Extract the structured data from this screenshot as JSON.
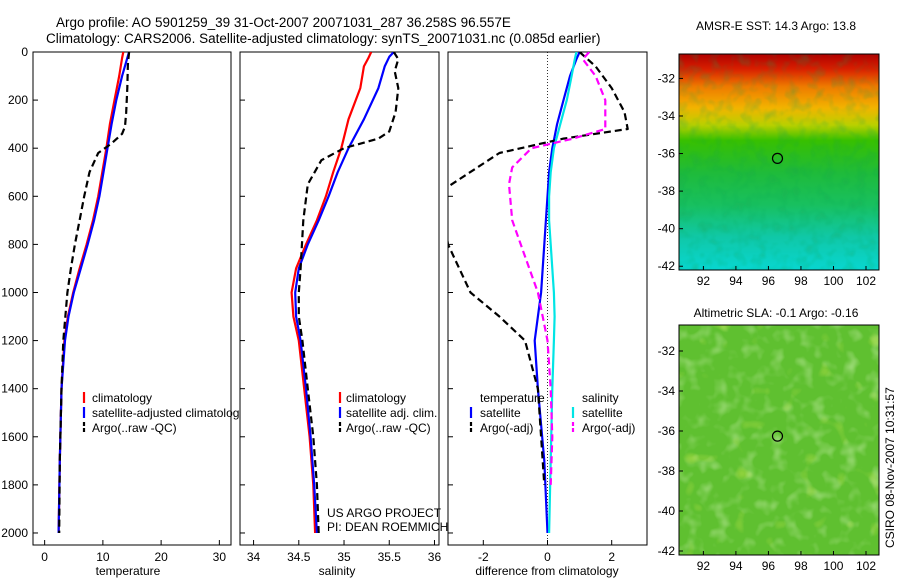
{
  "title": {
    "line1": "Argo profile: AO 5901259_39 31-Oct-2007 20071031_287 36.258S 96.557E",
    "line2": "Climatology: CARS2006. Satellite-adjusted climatology: synTS_20071031.nc (0.085d earlier)"
  },
  "credit": {
    "line1": "US ARGO PROJECT",
    "line2": "PI: DEAN ROEMMICH",
    "stamp": "CSIRO 08-Nov-2007 10:31:57"
  },
  "colors": {
    "climatology": "#ff0000",
    "satellite": "#0000ff",
    "argo": "#000000",
    "salinity_satellite": "#00e5e5",
    "salinity_argo": "#ff00ff"
  },
  "chart_data": [
    {
      "id": "temperature",
      "type": "line",
      "xlabel": "temperature",
      "ylabel": "",
      "xlim": [
        -2,
        32
      ],
      "ylim": [
        2050,
        0
      ],
      "xticks": [
        0,
        10,
        20,
        30
      ],
      "yticks": [
        0,
        200,
        400,
        600,
        800,
        1000,
        1200,
        1400,
        1600,
        1800,
        2000
      ],
      "legend": [
        "climatology",
        "satellite-adjusted climatology",
        "Argo(..raw -QC)"
      ],
      "series": [
        {
          "name": "climatology",
          "color": "#ff0000",
          "dash": "",
          "x": [
            13.5,
            13.3,
            12.8,
            12.0,
            11.2,
            10.6,
            9.9,
            9.2,
            8.3,
            7.2,
            6.0,
            4.9,
            4.0,
            3.4,
            2.9,
            2.6,
            2.4
          ],
          "y": [
            0,
            25,
            100,
            200,
            300,
            400,
            500,
            600,
            700,
            800,
            900,
            1000,
            1100,
            1200,
            1400,
            1700,
            2000
          ]
        },
        {
          "name": "satellite-adjusted climatology",
          "color": "#0000ff",
          "dash": "",
          "x": [
            14.5,
            14.2,
            13.3,
            12.3,
            11.5,
            10.8,
            10.1,
            9.4,
            8.5,
            7.4,
            6.2,
            5.0,
            4.1,
            3.5,
            2.9,
            2.6,
            2.4
          ],
          "y": [
            0,
            25,
            100,
            200,
            300,
            400,
            500,
            600,
            700,
            800,
            900,
            1000,
            1100,
            1200,
            1400,
            1700,
            2000
          ]
        },
        {
          "name": "Argo(..raw -QC)",
          "color": "#000000",
          "dash": "7,4",
          "x": [
            14.5,
            14.3,
            14.2,
            14.0,
            13.8,
            13.3,
            11.5,
            9.2,
            7.7,
            6.8,
            6.0,
            5.2,
            4.5,
            3.9,
            3.2,
            2.9,
            2.6,
            2.5
          ],
          "y": [
            0,
            50,
            150,
            250,
            310,
            340,
            380,
            420,
            500,
            600,
            700,
            800,
            900,
            1000,
            1200,
            1400,
            1700,
            2000
          ]
        }
      ]
    },
    {
      "id": "salinity",
      "type": "line",
      "xlabel": "salinity",
      "ylabel": "",
      "xlim": [
        33.85,
        36.05
      ],
      "ylim": [
        2050,
        0
      ],
      "xticks": [
        34,
        34.5,
        35,
        35.5,
        36
      ],
      "xtick_labels": [
        "34",
        "34.5",
        "35",
        "35.5",
        "36"
      ],
      "yticks": [
        0,
        200,
        400,
        600,
        800,
        1000,
        1200,
        1400,
        1600,
        1800,
        2000
      ],
      "legend": [
        "climatology",
        "satellite adj. clim.",
        "Argo(..raw -QC)"
      ],
      "series": [
        {
          "name": "climatology",
          "color": "#ff0000",
          "dash": "",
          "x": [
            35.3,
            35.27,
            35.22,
            35.18,
            35.05,
            34.97,
            34.88,
            34.8,
            34.7,
            34.58,
            34.47,
            34.42,
            34.44,
            34.5,
            34.56,
            34.62,
            34.66,
            34.68
          ],
          "y": [
            0,
            25,
            60,
            150,
            280,
            400,
            500,
            600,
            700,
            800,
            900,
            1000,
            1100,
            1200,
            1400,
            1600,
            1800,
            2000
          ]
        },
        {
          "name": "satellite adj. clim.",
          "color": "#0000ff",
          "dash": "",
          "x": [
            35.55,
            35.5,
            35.45,
            35.38,
            35.22,
            35.05,
            34.93,
            34.83,
            34.72,
            34.6,
            34.5,
            34.46,
            34.47,
            34.52,
            34.58,
            34.63,
            34.67,
            34.7
          ],
          "y": [
            0,
            20,
            60,
            150,
            280,
            400,
            500,
            600,
            700,
            800,
            900,
            1000,
            1100,
            1200,
            1400,
            1600,
            1800,
            2000
          ]
        },
        {
          "name": "Argo(..raw -QC)",
          "color": "#000000",
          "dash": "7,4",
          "x": [
            35.55,
            35.6,
            35.56,
            35.6,
            35.57,
            35.5,
            35.38,
            35.0,
            34.75,
            34.6,
            34.55,
            34.52,
            34.5,
            34.5,
            34.54,
            34.6,
            34.66,
            34.7,
            34.72
          ],
          "y": [
            0,
            30,
            80,
            150,
            250,
            330,
            360,
            400,
            450,
            550,
            700,
            900,
            1000,
            1100,
            1200,
            1400,
            1600,
            1800,
            2000
          ]
        }
      ]
    },
    {
      "id": "difference",
      "type": "line",
      "xlabel": "difference from climatology",
      "ylabel": "",
      "xlim": [
        -3.1,
        3.1
      ],
      "ylim": [
        2050,
        0
      ],
      "xticks": [
        -2,
        0,
        2
      ],
      "yticks": [
        0,
        200,
        400,
        600,
        800,
        1000,
        1200,
        1400,
        1600,
        1800,
        2000
      ],
      "legend_left_title": "temperature",
      "legend_right_title": "salinity",
      "legend": [
        "satellite",
        "Argo(-adj)",
        "satellite",
        "Argo(-adj)"
      ],
      "series": [
        {
          "name": "temperature satellite",
          "color": "#0000ff",
          "dash": "",
          "x": [
            1.0,
            0.9,
            0.7,
            0.5,
            0.3,
            0.15,
            0.05,
            0.0,
            -0.05,
            -0.1,
            -0.15,
            -0.2,
            -0.3,
            -0.4,
            -0.3,
            -0.1,
            0.0
          ],
          "y": [
            0,
            30,
            100,
            200,
            300,
            400,
            500,
            600,
            700,
            800,
            900,
            1000,
            1100,
            1200,
            1400,
            1700,
            2000
          ]
        },
        {
          "name": "temperature Argo(-adj)",
          "color": "#000000",
          "dash": "7,4",
          "x": [
            1.0,
            1.5,
            2.0,
            2.4,
            2.5,
            0.5,
            -1.5,
            -3.1,
            -3.3,
            -3.1,
            -2.4,
            -1.5,
            -0.7,
            -0.3,
            -0.2,
            -0.1
          ],
          "y": [
            0,
            60,
            150,
            250,
            320,
            360,
            420,
            560,
            620,
            800,
            1000,
            1100,
            1200,
            1400,
            1600,
            1800
          ]
        },
        {
          "name": "salinity satellite",
          "color": "#00e5e5",
          "dash": "",
          "x": [
            0.9,
            0.85,
            0.75,
            0.6,
            0.4,
            0.2,
            0.1,
            0.05,
            0.05,
            0.1,
            0.15,
            0.2,
            0.22,
            0.2,
            0.15,
            0.1,
            0.05
          ],
          "y": [
            0,
            30,
            100,
            200,
            300,
            400,
            500,
            600,
            700,
            800,
            900,
            1000,
            1100,
            1200,
            1400,
            1700,
            2000
          ]
        },
        {
          "name": "salinity Argo(-adj)",
          "color": "#ff00ff",
          "dash": "7,4",
          "x": [
            1.3,
            1.1,
            1.5,
            1.8,
            1.8,
            0.8,
            -0.5,
            -1.1,
            -1.2,
            -1.1,
            -0.7,
            -0.3,
            0.0,
            0.1,
            0.15,
            0.1
          ],
          "y": [
            0,
            30,
            100,
            200,
            320,
            360,
            400,
            480,
            550,
            700,
            850,
            1000,
            1200,
            1400,
            1600,
            1800
          ]
        }
      ]
    },
    {
      "id": "sst-map",
      "type": "heatmap",
      "title": "AMSR-E SST: 14.3  Argo: 13.8",
      "xlim": [
        90.5,
        102.8
      ],
      "ylim": [
        -42.2,
        -30.7
      ],
      "xticks": [
        92,
        94,
        96,
        98,
        100,
        102
      ],
      "yticks": [
        -32,
        -34,
        -36,
        -38,
        -40,
        -42
      ],
      "marker": {
        "lon": 96.557,
        "lat": -36.258
      }
    },
    {
      "id": "sla-map",
      "type": "heatmap",
      "title": "Altimetric SLA: -0.1  Argo: -0.16",
      "xlim": [
        90.5,
        102.8
      ],
      "ylim": [
        -42.2,
        -30.7
      ],
      "xticks": [
        92,
        94,
        96,
        98,
        100,
        102
      ],
      "yticks": [
        -32,
        -34,
        -36,
        -38,
        -40,
        -42
      ],
      "marker": {
        "lon": 96.557,
        "lat": -36.258
      }
    }
  ]
}
